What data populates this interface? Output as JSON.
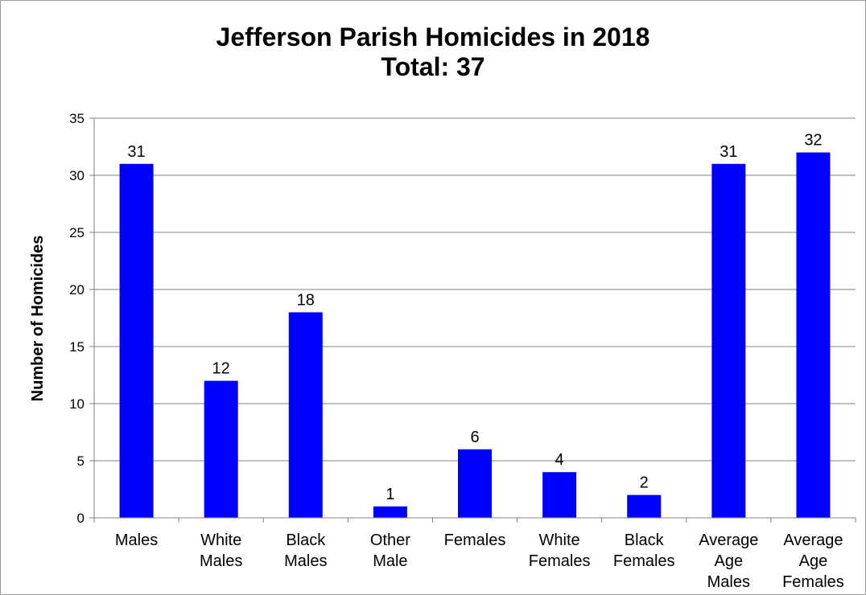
{
  "chart_data": {
    "type": "bar",
    "title": "Jefferson Parish Homicides in 2018",
    "subtitle": "Total: 37",
    "xlabel": "",
    "ylabel": "Number of Homicides",
    "categories": [
      [
        "Males"
      ],
      [
        "White",
        "Males"
      ],
      [
        "Black",
        "Males"
      ],
      [
        "Other",
        "Male"
      ],
      [
        "Females"
      ],
      [
        "White",
        "Females"
      ],
      [
        "Black",
        "Females"
      ],
      [
        "Average",
        "Age",
        "Males"
      ],
      [
        "Average",
        "Age",
        "Females"
      ]
    ],
    "values": [
      31,
      12,
      18,
      1,
      6,
      4,
      2,
      31,
      32
    ],
    "ylim": [
      0,
      35
    ],
    "yticks": [
      0,
      5,
      10,
      15,
      20,
      25,
      30,
      35
    ],
    "grid": true,
    "legend": "none",
    "bar_color": "#0000ff",
    "grid_color": "#808080"
  }
}
